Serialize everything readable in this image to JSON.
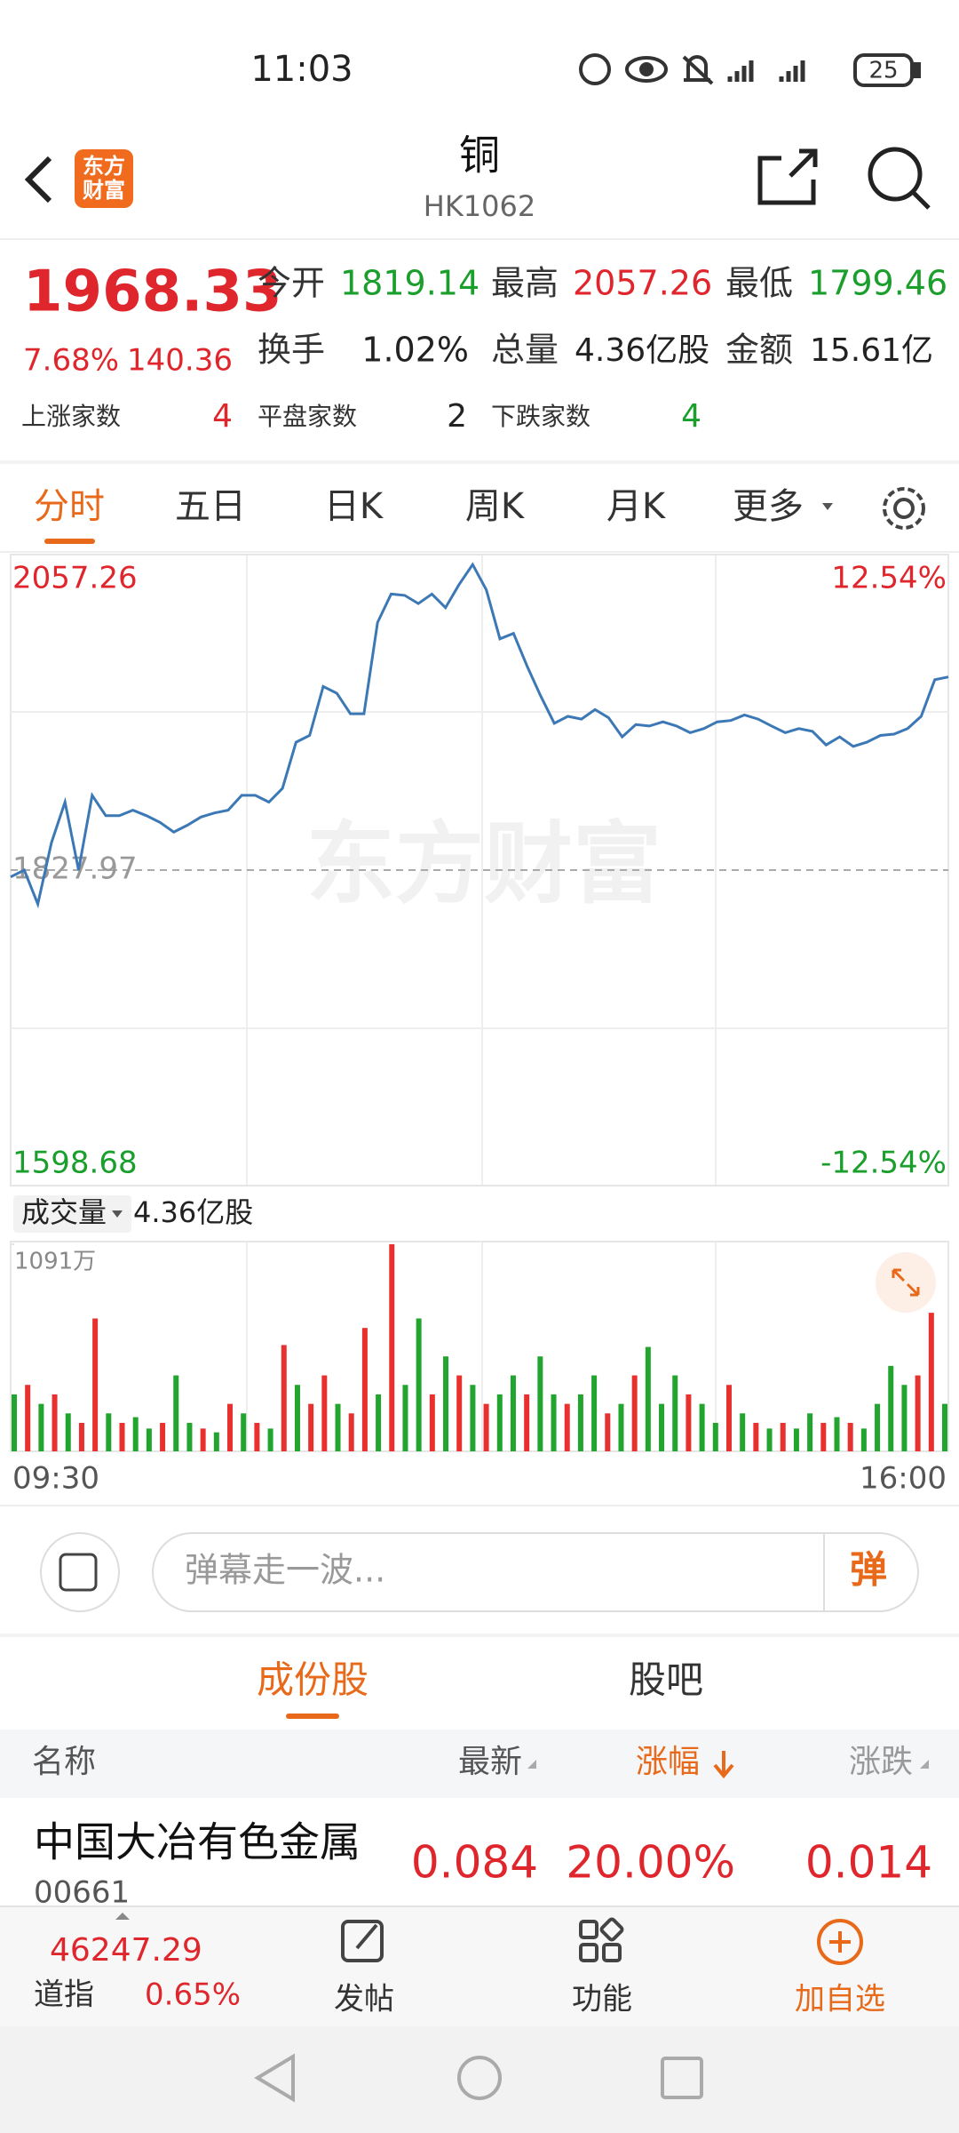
{
  "status_bar": {
    "time": "11:03",
    "battery": "25"
  },
  "header": {
    "title": "铜",
    "code": "HK1062",
    "logo_lines": [
      "东方",
      "财富"
    ]
  },
  "quote": {
    "price": "1968.33",
    "change_pct": "7.68%",
    "change": "140.36",
    "stats": [
      {
        "label": "今开",
        "value": "1819.14"
      },
      {
        "label": "最高",
        "value": "2057.26"
      },
      {
        "label": "最低",
        "value": "1799.46"
      },
      {
        "label": "换手",
        "value": "1.02%"
      },
      {
        "label": "总量",
        "value": "4.36亿股"
      },
      {
        "label": "金额",
        "value": "15.61亿"
      }
    ],
    "breadth": [
      {
        "label": "上涨家数",
        "value": "4"
      },
      {
        "label": "平盘家数",
        "value": "2"
      },
      {
        "label": "下跌家数",
        "value": "4"
      }
    ]
  },
  "period_tabs": [
    "分时",
    "五日",
    "日K",
    "周K",
    "月K",
    "更多"
  ],
  "chart_data": [
    {
      "type": "line",
      "watermark": "东方财富",
      "color": "#3b78b5",
      "values": [
        1823.0,
        1828.0,
        1803.3,
        1847.8,
        1877.4,
        1828.0,
        1882.3,
        1867.5,
        1867.5,
        1871.5,
        1867.5,
        1862.6,
        1855.6,
        1860.6,
        1866.5,
        1869.5,
        1871.5,
        1882.3,
        1882.3,
        1877.4,
        1887.3,
        1920.9,
        1925.8,
        1961.4,
        1956.5,
        1941.6,
        1941.6,
        2007.9,
        2028.6,
        2027.6,
        2021.7,
        2028.6,
        2018.7,
        2035.5,
        2050.0,
        2031.6,
        1996.0,
        2000.0,
        1976.2,
        1954.5,
        1934.7,
        1939.7,
        1937.7,
        1944.6,
        1938.7,
        1924.8,
        1933.7,
        1932.7,
        1935.7,
        1932.7,
        1927.8,
        1930.8,
        1935.7,
        1936.7,
        1940.7,
        1937.7,
        1932.7,
        1927.8,
        1930.8,
        1928.8,
        1918.9,
        1924.8,
        1917.9,
        1920.9,
        1925.8,
        1926.8,
        1930.8,
        1939.7,
        1966.3,
        1968.3
      ],
      "ylim": [
        1598.68,
        2057.26
      ],
      "yticks": [
        1598.68,
        1827.97,
        2057.26
      ],
      "y2lim": [
        -12.54,
        12.54
      ],
      "y2ticks": [
        {
          "value": -12.54,
          "label": "-12.54%"
        },
        {
          "value": 12.54,
          "label": "12.54%"
        }
      ]
    },
    {
      "type": "bar",
      "title": "成交量",
      "total": "4.36亿股",
      "values": [
        300,
        350,
        250,
        300,
        200,
        150,
        700,
        200,
        150,
        180,
        120,
        150,
        400,
        150,
        120,
        100,
        250,
        200,
        150,
        120,
        560,
        350,
        250,
        400,
        250,
        200,
        650,
        300,
        1091,
        350,
        700,
        300,
        500,
        400,
        350,
        250,
        300,
        400,
        300,
        500,
        300,
        250,
        300,
        400,
        200,
        250,
        400,
        550,
        250,
        400,
        300,
        250,
        150,
        350,
        200,
        150,
        120,
        150,
        120,
        200,
        150,
        180,
        150,
        120,
        250,
        450,
        350,
        400,
        730,
        250
      ],
      "bar_colors": [
        "#22a52e",
        "#e8312f",
        "#22a52e",
        "#e8312f",
        "#22a52e",
        "#e8312f",
        "#e8312f",
        "#22a52e",
        "#e8312f",
        "#22a52e",
        "#22a52e",
        "#e8312f",
        "#22a52e",
        "#22a52e",
        "#e8312f",
        "#22a52e",
        "#e8312f",
        "#22a52e",
        "#e8312f",
        "#22a52e",
        "#e8312f",
        "#22a52e",
        "#e8312f",
        "#e8312f",
        "#22a52e",
        "#e8312f",
        "#e8312f",
        "#22a52e",
        "#e8312f",
        "#22a52e",
        "#22a52e",
        "#e8312f",
        "#22a52e",
        "#e8312f",
        "#22a52e",
        "#e8312f",
        "#22a52e",
        "#22a52e",
        "#e8312f",
        "#22a52e",
        "#22a52e",
        "#e8312f",
        "#22a52e",
        "#22a52e",
        "#e8312f",
        "#22a52e",
        "#e8312f",
        "#22a52e",
        "#22a52e",
        "#22a52e",
        "#e8312f",
        "#22a52e",
        "#22a52e",
        "#e8312f",
        "#22a52e",
        "#e8312f",
        "#22a52e",
        "#e8312f",
        "#22a52e",
        "#22a52e",
        "#e8312f",
        "#22a52e",
        "#e8312f",
        "#22a52e",
        "#22a52e",
        "#22a52e",
        "#22a52e",
        "#e8312f",
        "#e8312f",
        "#22a52e"
      ],
      "ylim": [
        0,
        1091
      ],
      "yticks": [
        {
          "value": 1091,
          "label": "1091万"
        }
      ],
      "xticks": [
        "09:30",
        "16:00"
      ]
    }
  ],
  "danmaku": {
    "placeholder": "弹幕走一波...",
    "button": "弹"
  },
  "section_tabs": [
    "成份股",
    "股吧"
  ],
  "table": {
    "header": [
      "名称",
      "最新",
      "涨幅",
      "涨跌"
    ],
    "rows": [
      {
        "name": "中国大冶有色金属",
        "code": "00661",
        "cells": [
          "0.084",
          "20.00%",
          "0.014"
        ]
      }
    ]
  },
  "bottom_bar": {
    "index_value": "46247.29",
    "index_name": "道指",
    "index_change": "0.65%",
    "items": [
      "发帖",
      "功能",
      "加自选"
    ]
  }
}
